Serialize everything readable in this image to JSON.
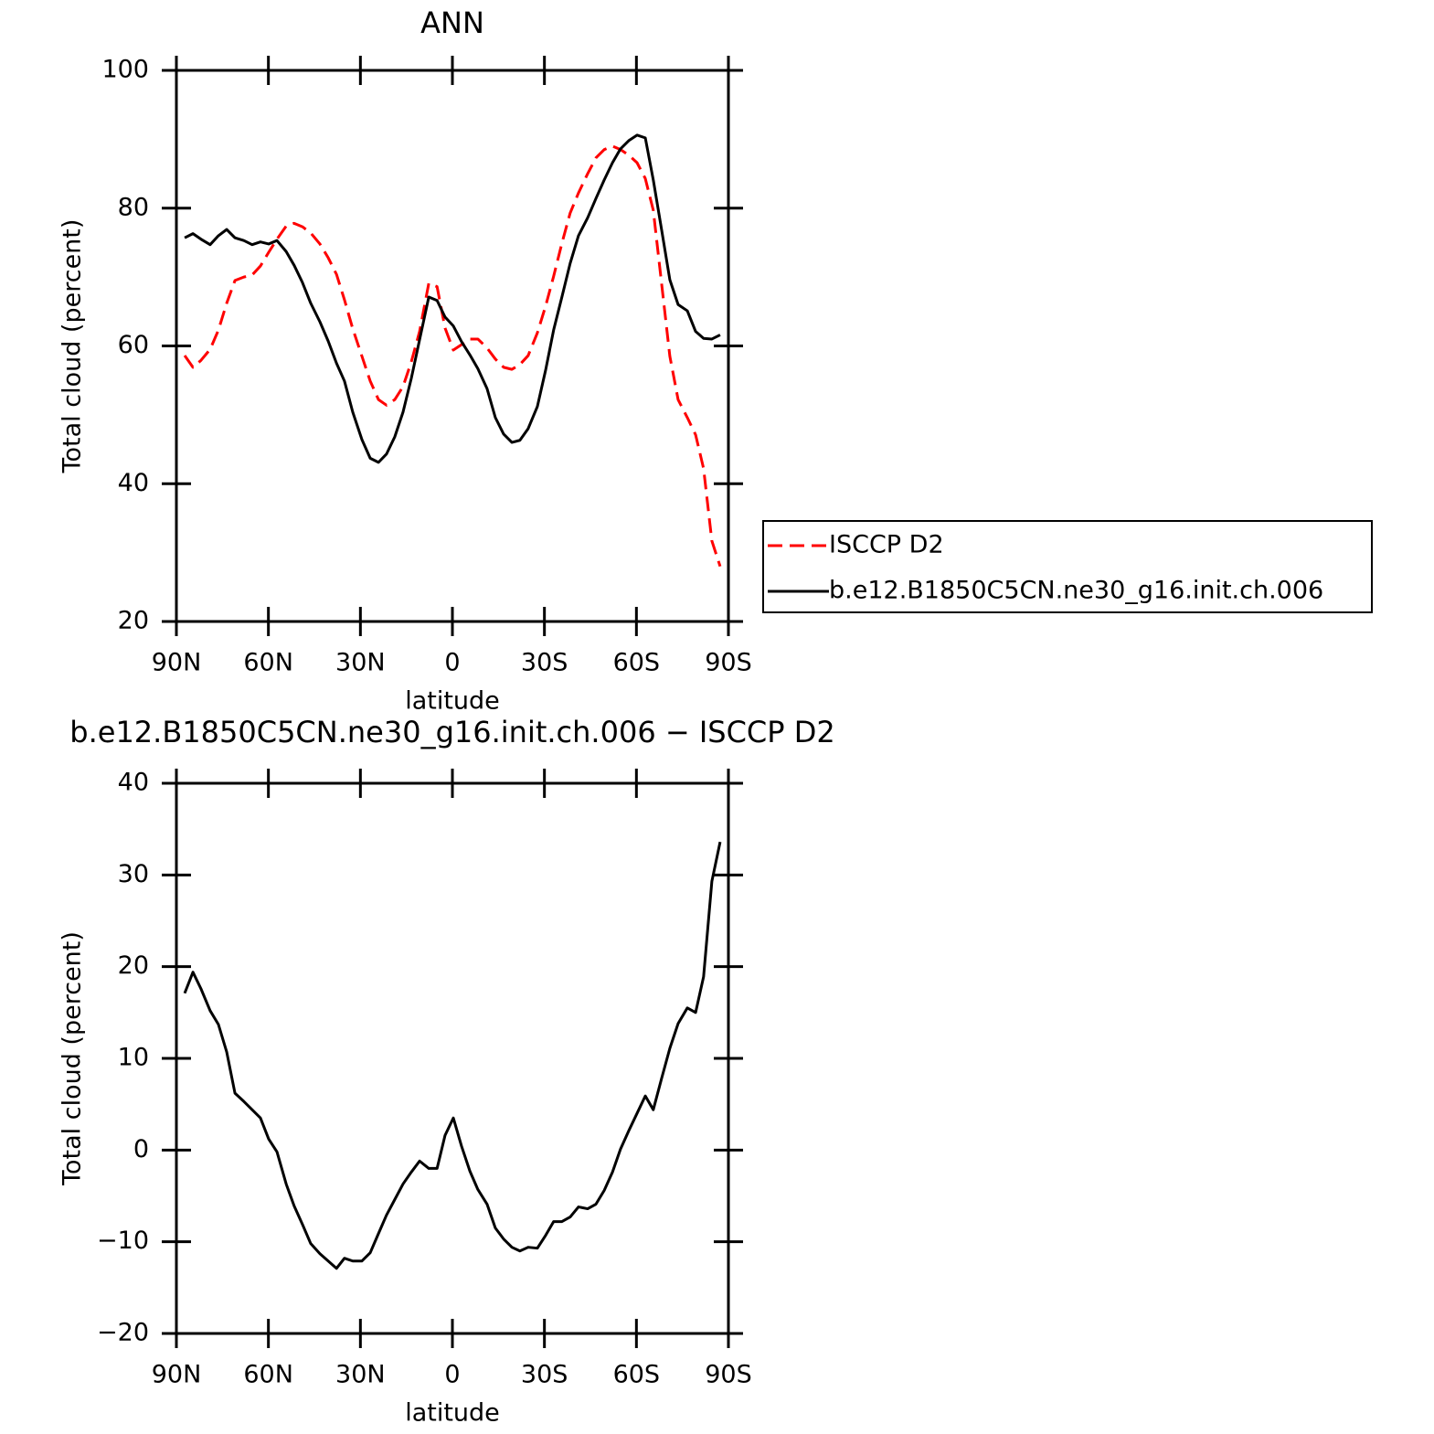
{
  "chart_data": [
    {
      "type": "line",
      "title": "ANN",
      "xlabel": "latitude",
      "ylabel": "Total cloud (percent)",
      "xlim": [
        90,
        -90
      ],
      "xticks": [
        {
          "value": 90,
          "label": "90N"
        },
        {
          "value": 60,
          "label": "60N"
        },
        {
          "value": 30,
          "label": "30N"
        },
        0,
        {
          "value": -30,
          "label": "30S"
        },
        {
          "value": -60,
          "label": "60S"
        },
        {
          "value": -90,
          "label": "90S"
        }
      ],
      "ylim": [
        20,
        100
      ],
      "yticks": [
        20,
        40,
        60,
        80,
        100
      ],
      "x": [
        87.3,
        84.6,
        82,
        79,
        76.3,
        73.6,
        70.9,
        68,
        65.3,
        62.6,
        59.9,
        57.2,
        54.2,
        51.6,
        48.9,
        46.2,
        43.2,
        40.5,
        37.8,
        35.2,
        32.5,
        29.5,
        26.8,
        24.1,
        21.5,
        18.8,
        16.1,
        13.4,
        10.7,
        7.7,
        5,
        2.4,
        -0.3,
        -3,
        -5.7,
        -8.3,
        -11.3,
        -14,
        -16.7,
        -19.4,
        -22,
        -24.7,
        -27.7,
        -30.4,
        -33,
        -35.7,
        -38.4,
        -41.1,
        -44.1,
        -46.8,
        -49.5,
        -52.2,
        -54.8,
        -57.5,
        -60.2,
        -62.9,
        -65.5,
        -68.2,
        -70.9,
        -73.6,
        -76.6,
        -79.3,
        -81.9,
        -84.6,
        -87.3
      ],
      "series": [
        {
          "name": "ISCCP D2",
          "color": "#ff0000",
          "line_style": "dashed",
          "values": [
            58.6,
            56.9,
            57.9,
            59.5,
            62.3,
            66.2,
            69.5,
            70,
            70.3,
            71.6,
            73.6,
            75.5,
            77.4,
            77.8,
            77.3,
            76.4,
            74.8,
            72.8,
            70.4,
            66.7,
            62.5,
            58.5,
            54.9,
            52.2,
            51.4,
            52.2,
            54.1,
            57.7,
            62.1,
            69.1,
            68.6,
            62.6,
            59.4,
            60.2,
            61,
            61,
            59.7,
            58.1,
            56.9,
            56.6,
            57.3,
            58.6,
            61.9,
            65.8,
            70.1,
            74.9,
            79.3,
            82.2,
            85,
            87.3,
            88.5,
            89,
            88.5,
            87.7,
            86.6,
            84.3,
            79.7,
            69.1,
            58.5,
            52.2,
            49.6,
            47.1,
            42.2,
            31.7,
            28
          ]
        },
        {
          "name": "b.e12.B1850C5CN.ne30_g16.init.ch.006",
          "color": "#000000",
          "line_style": "solid",
          "values": [
            75.7,
            76.3,
            75.5,
            74.7,
            76,
            76.9,
            75.7,
            75.3,
            74.7,
            75.1,
            74.8,
            75.3,
            73.7,
            71.7,
            69.2,
            66.2,
            63.5,
            60.7,
            57.5,
            54.9,
            50.4,
            46.4,
            43.7,
            43.1,
            44.3,
            46.8,
            50.4,
            55.3,
            60.9,
            67.1,
            66.6,
            64.2,
            62.9,
            60.6,
            58.7,
            56.7,
            53.8,
            49.6,
            47.2,
            46,
            46.3,
            48,
            51.2,
            56.5,
            62.3,
            67.1,
            72,
            76,
            78.6,
            81.4,
            84.1,
            86.6,
            88.6,
            89.8,
            90.6,
            90.2,
            84.1,
            76.9,
            69.6,
            66,
            65.1,
            62.1,
            61.1,
            61,
            61.6
          ]
        }
      ]
    },
    {
      "type": "line",
      "title": "b.e12.B1850C5CN.ne30_g16.init.ch.006 − ISCCP D2",
      "xlabel": "latitude",
      "ylabel": "Total cloud (percent)",
      "xlim": [
        90,
        -90
      ],
      "xticks": [
        {
          "value": 90,
          "label": "90N"
        },
        {
          "value": 60,
          "label": "60N"
        },
        {
          "value": 30,
          "label": "30N"
        },
        0,
        {
          "value": -30,
          "label": "30S"
        },
        {
          "value": -60,
          "label": "60S"
        },
        {
          "value": -90,
          "label": "90S"
        }
      ],
      "ylim": [
        -20,
        40
      ],
      "yticks": [
        {
          "value": -20,
          "label": "−20"
        },
        {
          "value": -10,
          "label": "−10"
        },
        0,
        10,
        20,
        30,
        40
      ],
      "x": [
        87.3,
        84.6,
        82,
        79,
        76.3,
        73.6,
        70.9,
        68,
        65.3,
        62.6,
        59.9,
        57.2,
        54.2,
        51.6,
        48.9,
        46.2,
        43.2,
        40.5,
        37.8,
        35.2,
        32.5,
        29.5,
        26.8,
        24.1,
        21.5,
        18.8,
        16.1,
        13.4,
        10.7,
        7.7,
        5,
        2.4,
        -0.3,
        -3,
        -5.7,
        -8.3,
        -11.3,
        -14,
        -16.7,
        -19.4,
        -22,
        -24.7,
        -27.7,
        -30.4,
        -33,
        -35.7,
        -38.4,
        -41.1,
        -44.1,
        -46.8,
        -49.5,
        -52.2,
        -54.8,
        -57.5,
        -60.2,
        -62.9,
        -65.5,
        -68.2,
        -70.9,
        -73.6,
        -76.6,
        -79.3,
        -81.9,
        -84.6,
        -87.3
      ],
      "color": "#000000",
      "values": [
        17.1,
        19.4,
        17.6,
        15.2,
        13.7,
        10.7,
        6.2,
        5.3,
        4.4,
        3.5,
        1.2,
        -0.2,
        -3.7,
        -6.1,
        -8.1,
        -10.2,
        -11.3,
        -12.1,
        -12.9,
        -11.8,
        -12.1,
        -12.1,
        -11.2,
        -9.1,
        -7.1,
        -5.4,
        -3.7,
        -2.4,
        -1.2,
        -2,
        -2,
        1.6,
        3.5,
        0.4,
        -2.3,
        -4.3,
        -5.9,
        -8.5,
        -9.7,
        -10.6,
        -11,
        -10.6,
        -10.7,
        -9.3,
        -7.8,
        -7.8,
        -7.3,
        -6.2,
        -6.4,
        -5.9,
        -4.4,
        -2.4,
        0.1,
        2.1,
        4,
        5.9,
        4.4,
        7.8,
        11.1,
        13.8,
        15.5,
        15,
        18.9,
        29.3,
        33.6
      ]
    }
  ]
}
